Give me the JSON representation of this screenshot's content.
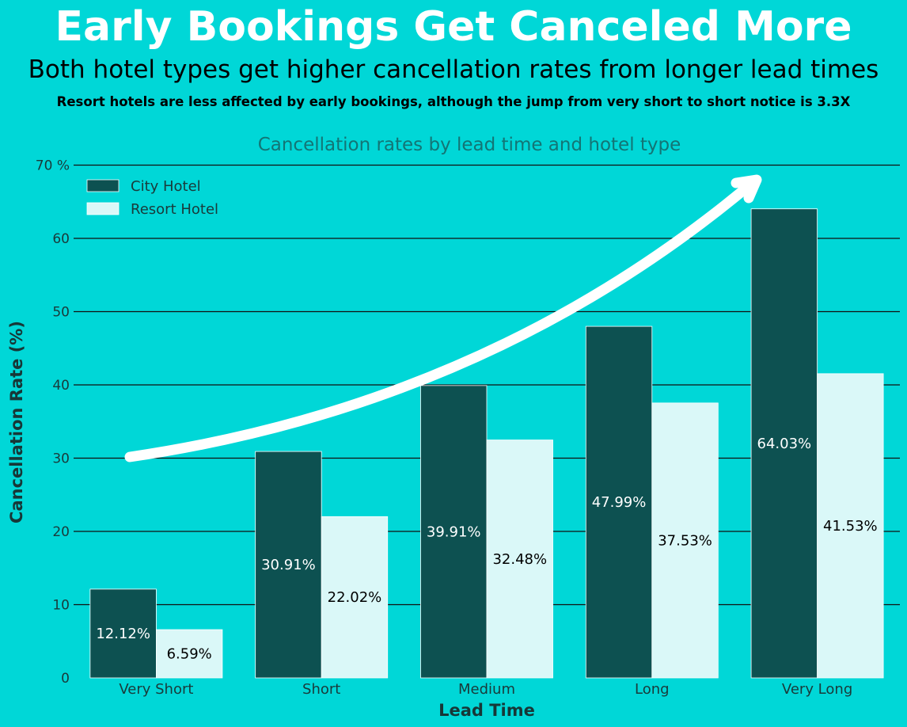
{
  "header": {
    "title": "Early Bookings Get Canceled More",
    "subtitle": "Both hotel types get higher cancellation rates from longer lead times",
    "note": "Resort hotels are less affected by early bookings, although the jump from very short to short notice is 3.3X"
  },
  "colors": {
    "background": "#00D7D7",
    "city": "#0D5151",
    "resort": "#DAF8F8",
    "arrow": "#FFFFFF",
    "chart_title": "#137575"
  },
  "chart_data": {
    "type": "bar",
    "title": "Cancellation rates by lead time and hotel type",
    "xlabel": "Lead Time",
    "ylabel": "Cancellation Rate (%)",
    "ylim": [
      0,
      70
    ],
    "yticks": [
      "0",
      "10",
      "20",
      "30",
      "40",
      "50",
      "60",
      "70 %"
    ],
    "grid": true,
    "legend_position": "top-left",
    "categories": [
      "Very Short",
      "Short",
      "Medium",
      "Long",
      "Very Long"
    ],
    "series": [
      {
        "name": "City Hotel",
        "values": [
          12.12,
          30.91,
          39.91,
          47.99,
          64.03
        ],
        "labels": [
          "12.12%",
          "30.91%",
          "39.91%",
          "47.99%",
          "64.03%"
        ]
      },
      {
        "name": "Resort Hotel",
        "values": [
          6.59,
          22.02,
          32.48,
          37.53,
          41.53
        ],
        "labels": [
          "6.59%",
          "22.02%",
          "32.48%",
          "37.53%",
          "41.53%"
        ]
      }
    ],
    "annotation": "upward-trend-arrow"
  }
}
